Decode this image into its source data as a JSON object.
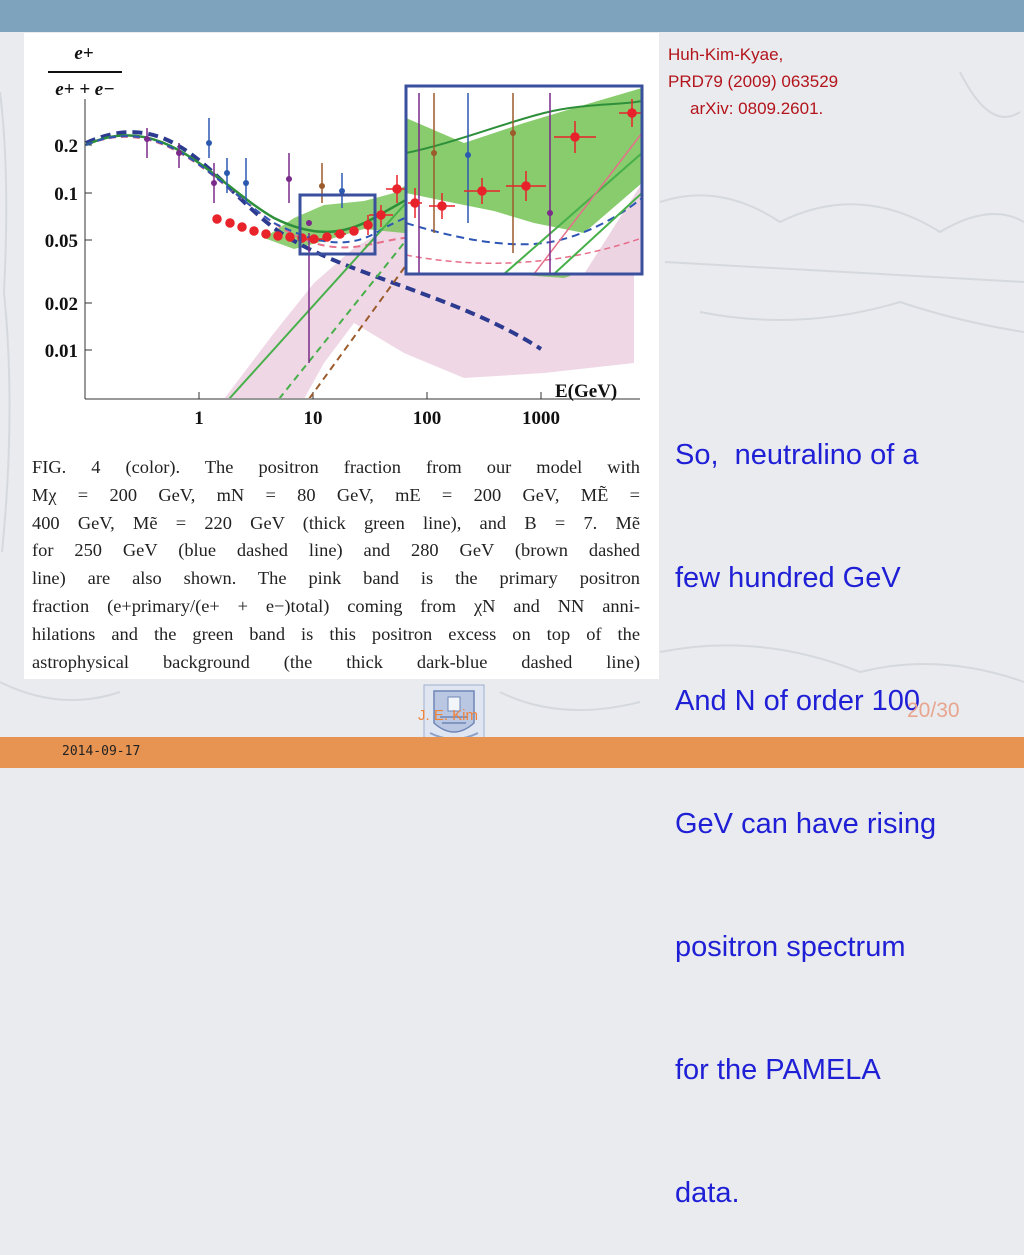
{
  "slide": {
    "reference_lines": [
      "Huh-Kim-Kyae,",
      "PRD79 (2009) 063529",
      "arXiv: 0809.2601."
    ],
    "bullet_lines": [
      "So,  neutralino of a",
      "few hundred GeV",
      "And N of order 100",
      "GeV can have rising",
      "positron spectrum",
      "for the PAMELA",
      "data."
    ],
    "author": "J. E. Kim",
    "page": "20/30",
    "date": "2014-09-17"
  },
  "figure": {
    "y_axis_label_num": "e+",
    "y_axis_label_den": "e+ + e−",
    "x_axis_label": "E(GeV)",
    "y_ticks": [
      "0.2",
      "0.1",
      "0.05",
      "0.02",
      "0.01"
    ],
    "x_ticks": [
      "1",
      "10",
      "100",
      "1000"
    ],
    "caption_lines": [
      "FIG. 4 (color).   The positron fraction from our model with",
      "Mχ = 200 GeV,    mN = 80 GeV,    mE = 200 GeV,    MẼ =",
      "400 GeV, Mẽ = 220 GeV (thick green line), and B = 7. Mẽ",
      "for 250 GeV (blue dashed line) and 280 GeV (brown dashed",
      "line) are also shown. The pink band is the primary positron",
      "fraction (e+primary/(e+ + e−)total) coming from χN and NN anni-",
      "hilations and the green band is this positron excess on top of the",
      "astrophysical background (the thick dark-blue dashed line)"
    ]
  },
  "colors": {
    "top_bar": "#7ea3bd",
    "bottom_bar": "#e79452",
    "reference": "#b3141c",
    "bullet": "#1f1fd6",
    "author": "#f0833a",
    "page": "#e8a58f",
    "data_points": "#e8232a",
    "inset_frame": "#3a4f9e"
  },
  "icons": {
    "logo": "university-seal-icon"
  }
}
